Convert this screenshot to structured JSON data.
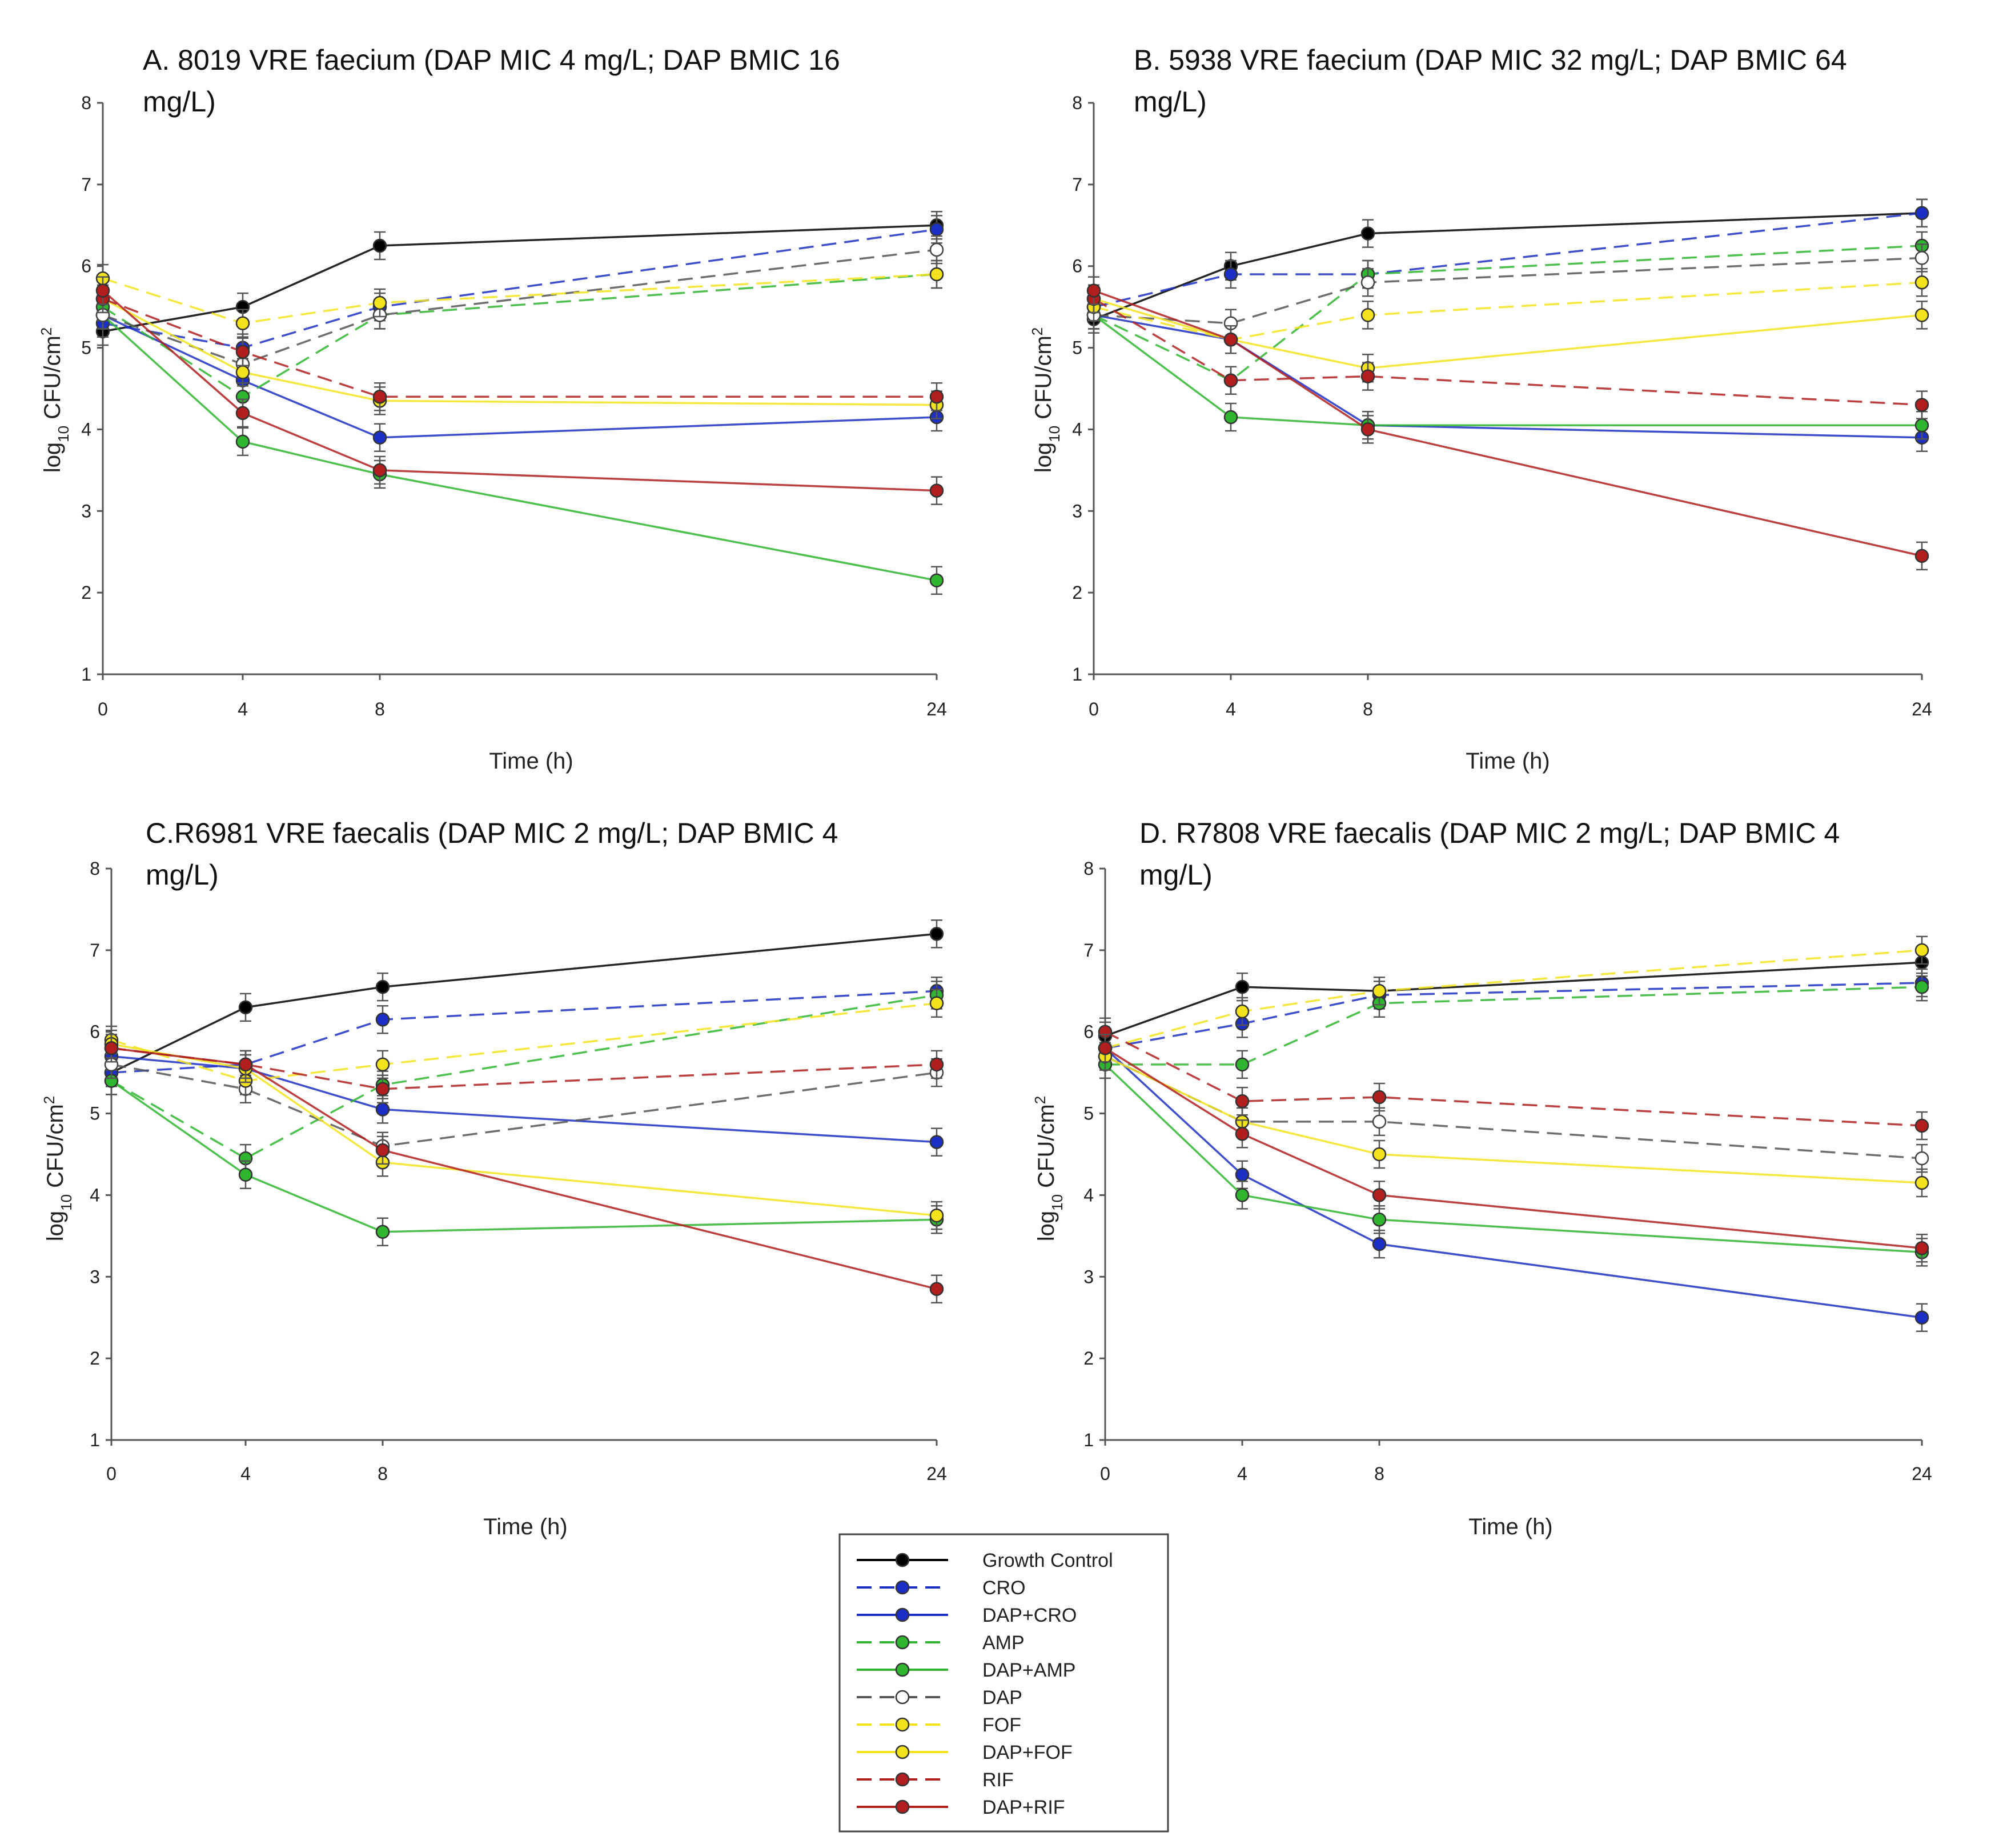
{
  "figure": {
    "legend": {
      "entries": [
        {
          "name": "Growth Control",
          "color": "#000000",
          "dashed": false,
          "filled": true
        },
        {
          "name": "CRO",
          "color": "#1c2fc4",
          "dashed": true,
          "filled": true
        },
        {
          "name": "DAP+CRO",
          "color": "#1c2fc4",
          "dashed": false,
          "filled": true
        },
        {
          "name": "AMP",
          "color": "#2fb52f",
          "dashed": true,
          "filled": true
        },
        {
          "name": "DAP+AMP",
          "color": "#2fb52f",
          "dashed": false,
          "filled": true
        },
        {
          "name": "DAP",
          "color": "#555555",
          "dashed": true,
          "filled": false
        },
        {
          "name": "FOF",
          "color": "#f2e31c",
          "dashed": true,
          "filled": true
        },
        {
          "name": "DAP+FOF",
          "color": "#f2e31c",
          "dashed": false,
          "filled": true
        },
        {
          "name": "RIF",
          "color": "#b01e1e",
          "dashed": true,
          "filled": true
        },
        {
          "name": "DAP+RIF",
          "color": "#b01e1e",
          "dashed": false,
          "filled": true
        }
      ]
    }
  },
  "chart_data": [
    {
      "id": "A",
      "type": "line",
      "title_line1": "A. 8019 VRE faecium (DAP MIC 4 mg/L; DAP BMIC 16",
      "title_line2": "mg/L)",
      "xlabel": "Time (h)",
      "ylabel_prefix": "log",
      "ylabel_sub": "10",
      "ylabel_suffix": " CFU/cm",
      "ylabel_sup": "2",
      "x": [
        0,
        4,
        8,
        24
      ],
      "x_tick_labels": [
        "0",
        "4",
        "8",
        "24"
      ],
      "y_ticks": [
        1,
        2,
        3,
        4,
        5,
        6,
        7,
        8
      ],
      "ylim": [
        1,
        8
      ],
      "series": [
        {
          "name": "Growth Control",
          "values": [
            5.2,
            5.5,
            6.25,
            6.5
          ]
        },
        {
          "name": "CRO",
          "values": [
            5.3,
            5.0,
            5.5,
            6.45
          ]
        },
        {
          "name": "DAP+CRO",
          "values": [
            5.4,
            4.6,
            3.9,
            4.15
          ]
        },
        {
          "name": "AMP",
          "values": [
            5.5,
            4.4,
            5.4,
            5.9
          ]
        },
        {
          "name": "DAP+AMP",
          "values": [
            5.4,
            3.85,
            3.45,
            2.15
          ]
        },
        {
          "name": "DAP",
          "values": [
            5.4,
            4.8,
            5.4,
            6.2
          ]
        },
        {
          "name": "FOF",
          "values": [
            5.85,
            5.3,
            5.55,
            5.9
          ]
        },
        {
          "name": "DAP+FOF",
          "values": [
            5.6,
            4.7,
            4.35,
            4.3
          ]
        },
        {
          "name": "RIF",
          "values": [
            5.6,
            4.95,
            4.4,
            4.4
          ]
        },
        {
          "name": "DAP+RIF",
          "values": [
            5.7,
            4.2,
            3.5,
            3.25
          ]
        }
      ]
    },
    {
      "id": "B",
      "type": "line",
      "title_line1": "B. 5938 VRE faecium (DAP MIC 32 mg/L; DAP BMIC 64",
      "title_line2": "mg/L)",
      "xlabel": "Time (h)",
      "ylabel_prefix": "log",
      "ylabel_sub": "10",
      "ylabel_suffix": " CFU/cm",
      "ylabel_sup": "2",
      "x": [
        0,
        4,
        8,
        24
      ],
      "x_tick_labels": [
        "0",
        "4",
        "8",
        "24"
      ],
      "y_ticks": [
        1,
        2,
        3,
        4,
        5,
        6,
        7,
        8
      ],
      "ylim": [
        1,
        8
      ],
      "series": [
        {
          "name": "Growth Control",
          "values": [
            5.35,
            6.0,
            6.4,
            6.65
          ]
        },
        {
          "name": "CRO",
          "values": [
            5.5,
            5.9,
            5.9,
            6.65
          ]
        },
        {
          "name": "DAP+CRO",
          "values": [
            5.4,
            5.1,
            4.05,
            3.9
          ]
        },
        {
          "name": "AMP",
          "values": [
            5.4,
            4.6,
            5.9,
            6.25
          ]
        },
        {
          "name": "DAP+AMP",
          "values": [
            5.4,
            4.15,
            4.05,
            4.05
          ]
        },
        {
          "name": "DAP",
          "values": [
            5.4,
            5.3,
            5.8,
            6.1
          ]
        },
        {
          "name": "FOF",
          "values": [
            5.5,
            5.1,
            5.4,
            5.8
          ]
        },
        {
          "name": "DAP+FOF",
          "values": [
            5.6,
            5.1,
            4.75,
            5.4
          ]
        },
        {
          "name": "RIF",
          "values": [
            5.6,
            4.6,
            4.65,
            4.3
          ]
        },
        {
          "name": "DAP+RIF",
          "values": [
            5.7,
            5.1,
            4.0,
            2.45
          ]
        }
      ]
    },
    {
      "id": "C",
      "type": "line",
      "title_line1": "C.R6981 VRE faecalis (DAP MIC 2 mg/L; DAP BMIC 4",
      "title_line2": "mg/L)",
      "xlabel": "Time (h)",
      "ylabel_prefix": "log",
      "ylabel_sub": "10",
      "ylabel_suffix": " CFU/cm",
      "ylabel_sup": "2",
      "x": [
        0,
        4,
        8,
        24
      ],
      "x_tick_labels": [
        "0",
        "4",
        "8",
        "24"
      ],
      "y_ticks": [
        1,
        2,
        3,
        4,
        5,
        6,
        7,
        8
      ],
      "ylim": [
        1,
        8
      ],
      "series": [
        {
          "name": "Growth Control",
          "values": [
            5.5,
            6.3,
            6.55,
            7.2
          ]
        },
        {
          "name": "CRO",
          "values": [
            5.5,
            5.6,
            6.15,
            6.5
          ]
        },
        {
          "name": "DAP+CRO",
          "values": [
            5.7,
            5.55,
            5.05,
            4.65
          ]
        },
        {
          "name": "AMP",
          "values": [
            5.4,
            4.45,
            5.35,
            6.45
          ]
        },
        {
          "name": "DAP+AMP",
          "values": [
            5.4,
            4.25,
            3.55,
            3.7
          ]
        },
        {
          "name": "DAP",
          "values": [
            5.6,
            5.3,
            4.6,
            5.5
          ]
        },
        {
          "name": "FOF",
          "values": [
            5.9,
            5.4,
            5.6,
            6.35
          ]
        },
        {
          "name": "DAP+FOF",
          "values": [
            5.85,
            5.55,
            4.4,
            3.75
          ]
        },
        {
          "name": "RIF",
          "values": [
            5.8,
            5.6,
            5.3,
            5.6
          ]
        },
        {
          "name": "DAP+RIF",
          "values": [
            5.8,
            5.6,
            4.55,
            2.85
          ]
        }
      ]
    },
    {
      "id": "D",
      "type": "line",
      "title_line1": "D. R7808 VRE faecalis (DAP MIC 2 mg/L; DAP BMIC 4",
      "title_line2": "mg/L)",
      "xlabel": "Time (h)",
      "ylabel_prefix": "log",
      "ylabel_sub": "10",
      "ylabel_suffix": " CFU/cm",
      "ylabel_sup": "2",
      "x": [
        0,
        4,
        8,
        24
      ],
      "x_tick_labels": [
        "0",
        "4",
        "8",
        "24"
      ],
      "y_ticks": [
        1,
        2,
        3,
        4,
        5,
        6,
        7,
        8
      ],
      "ylim": [
        1,
        8
      ],
      "series": [
        {
          "name": "Growth Control",
          "values": [
            5.95,
            6.55,
            6.5,
            6.85
          ]
        },
        {
          "name": "CRO",
          "values": [
            5.8,
            6.1,
            6.45,
            6.6
          ]
        },
        {
          "name": "DAP+CRO",
          "values": [
            5.8,
            4.25,
            3.4,
            2.5
          ]
        },
        {
          "name": "AMP",
          "values": [
            5.6,
            5.6,
            6.35,
            6.55
          ]
        },
        {
          "name": "DAP+AMP",
          "values": [
            5.6,
            4.0,
            3.7,
            3.3
          ]
        },
        {
          "name": "DAP",
          "values": [
            5.7,
            4.9,
            4.9,
            4.45
          ]
        },
        {
          "name": "FOF",
          "values": [
            5.8,
            6.25,
            6.5,
            7.0
          ]
        },
        {
          "name": "DAP+FOF",
          "values": [
            5.7,
            4.9,
            4.5,
            4.15
          ]
        },
        {
          "name": "RIF",
          "values": [
            6.0,
            5.15,
            5.2,
            4.85
          ]
        },
        {
          "name": "DAP+RIF",
          "values": [
            5.8,
            4.75,
            4.0,
            3.35
          ]
        }
      ]
    }
  ]
}
